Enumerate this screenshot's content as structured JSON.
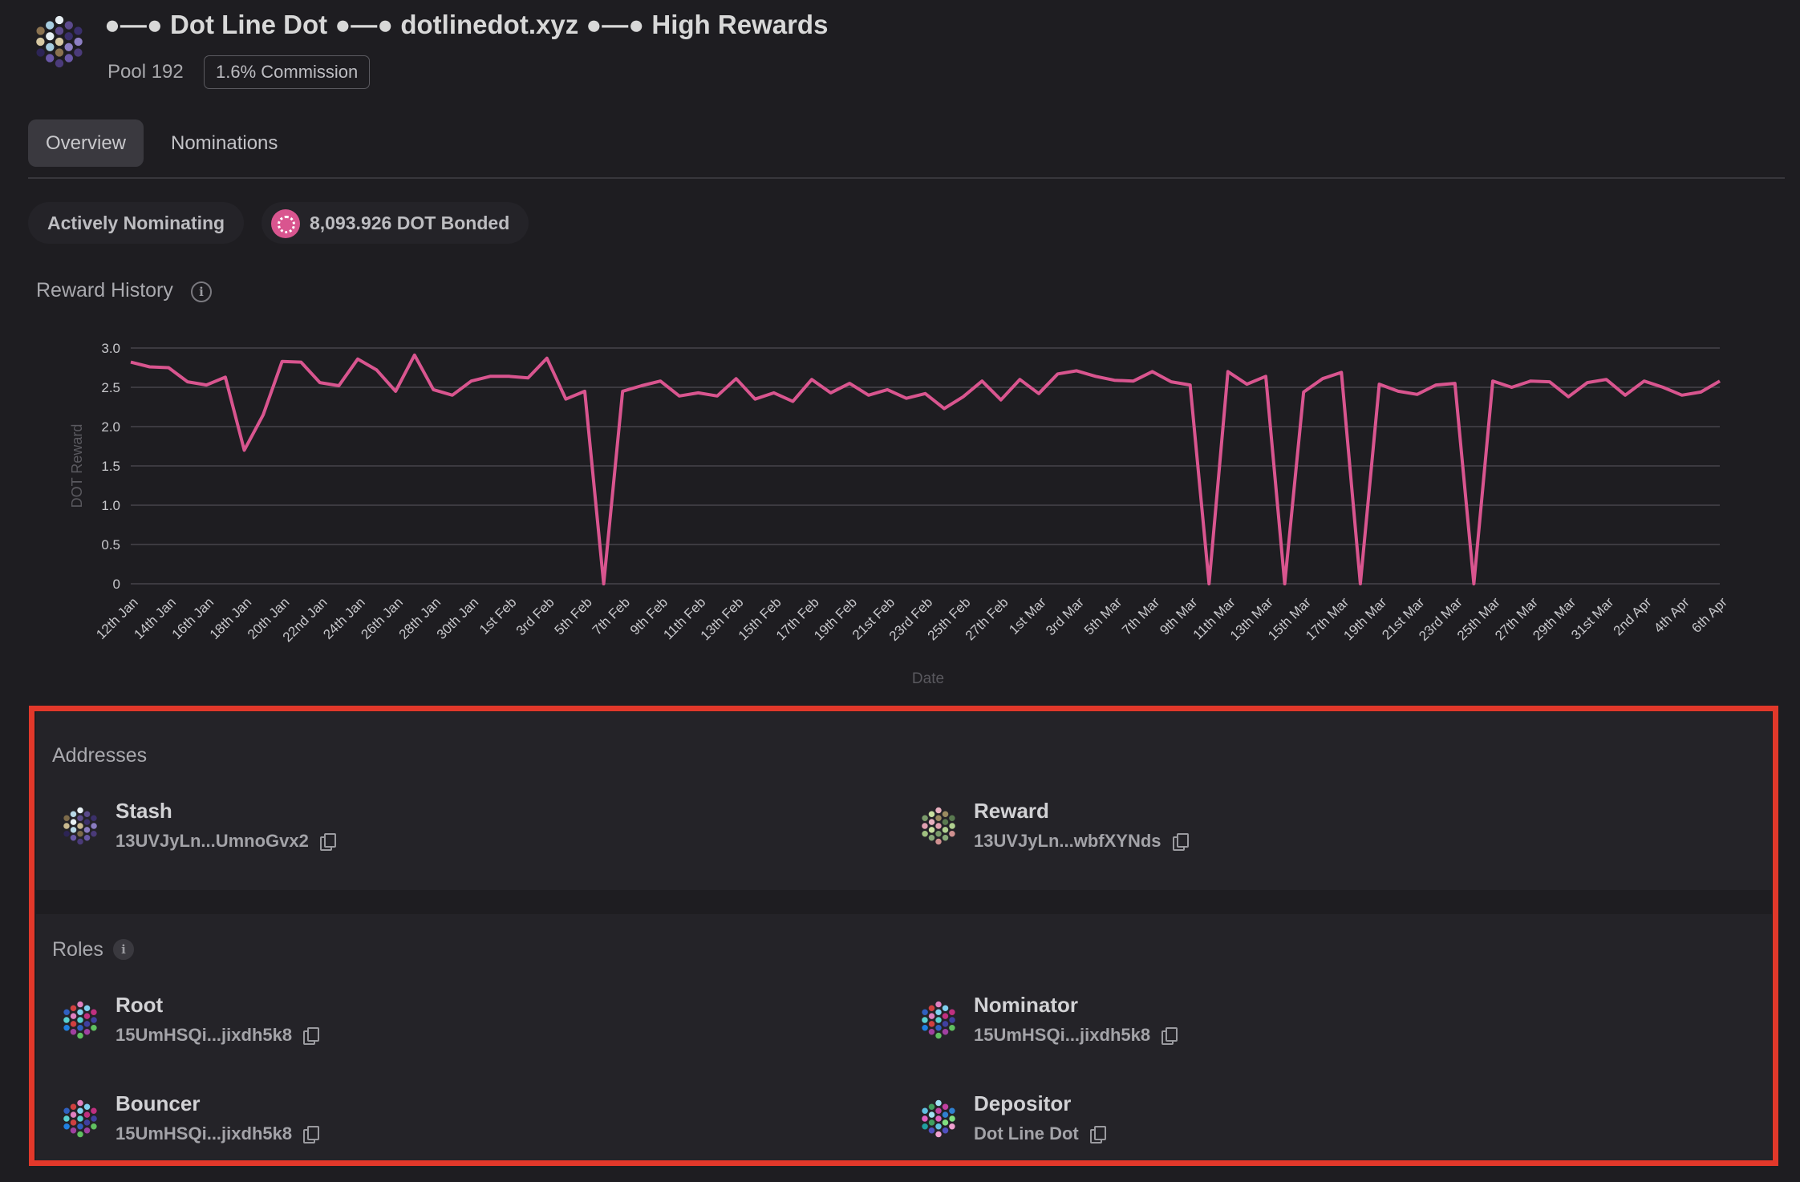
{
  "header": {
    "title": "●—● Dot Line Dot ●—● dotlinedot.xyz ●—● High Rewards",
    "pool_id": "Pool 192",
    "commission": "1.6% Commission"
  },
  "tabs": [
    {
      "label": "Overview",
      "active": true
    },
    {
      "label": "Nominations",
      "active": false
    }
  ],
  "status": {
    "nominating": "Actively Nominating",
    "bonded": "8,093.926 DOT Bonded"
  },
  "reward_history": {
    "label": "Reward History"
  },
  "chart_data": {
    "type": "line",
    "xlabel": "Date",
    "ylabel": "DOT Reward",
    "ylim": [
      0,
      3.0
    ],
    "yticks": [
      "0",
      "0.5",
      "1.0",
      "1.5",
      "2.0",
      "2.5",
      "3.0"
    ],
    "tick_labels": [
      "12th Jan",
      "14th Jan",
      "16th Jan",
      "18th Jan",
      "20th Jan",
      "22nd Jan",
      "24th Jan",
      "26th Jan",
      "28th Jan",
      "30th Jan",
      "1st Feb",
      "3rd Feb",
      "5th Feb",
      "7th Feb",
      "9th Feb",
      "11th Feb",
      "13th Feb",
      "15th Feb",
      "17th Feb",
      "19th Feb",
      "21st Feb",
      "23rd Feb",
      "25th Feb",
      "27th Feb",
      "1st Mar",
      "3rd Mar",
      "5th Mar",
      "7th Mar",
      "9th Mar",
      "11th Mar",
      "13th Mar",
      "15th Mar",
      "17th Mar",
      "19th Mar",
      "21st Mar",
      "23rd Mar",
      "25th Mar",
      "27th Mar",
      "29th Mar",
      "31st Mar",
      "2nd Apr",
      "4th Apr",
      "6th Apr"
    ],
    "grid": true,
    "color": "#d9558f",
    "series": [
      {
        "values": [
          2.82,
          2.76,
          2.75,
          2.57,
          2.53,
          2.63,
          1.7,
          2.15,
          2.83,
          2.82,
          2.56,
          2.52,
          2.86,
          2.72,
          2.45,
          2.91,
          2.47,
          2.4,
          2.58,
          2.64,
          2.64,
          2.62,
          2.87,
          2.35,
          2.45,
          0,
          2.45,
          2.52,
          2.58,
          2.39,
          2.43,
          2.39,
          2.61,
          2.35,
          2.43,
          2.32,
          2.6,
          2.43,
          2.55,
          2.4,
          2.47,
          2.36,
          2.42,
          2.23,
          2.38,
          2.58,
          2.34,
          2.6,
          2.42,
          2.67,
          2.71,
          2.64,
          2.59,
          2.58,
          2.7,
          2.57,
          2.53,
          0,
          2.7,
          2.54,
          2.64,
          0,
          2.44,
          2.61,
          2.69,
          0,
          2.54,
          2.45,
          2.41,
          2.53,
          2.55,
          0,
          2.58,
          2.5,
          2.58,
          2.57,
          2.38,
          2.56,
          2.6,
          2.4,
          2.58,
          2.5,
          2.4,
          2.44,
          2.58
        ]
      }
    ]
  },
  "addresses": {
    "label": "Addresses",
    "stash": {
      "title": "Stash",
      "address": "13UVJyLn...UmnoGvx2"
    },
    "reward": {
      "title": "Reward",
      "address": "13UVJyLn...wbfXYNds"
    }
  },
  "roles": {
    "label": "Roles",
    "root": {
      "title": "Root",
      "address": "15UmHSQi...jixdh5k8"
    },
    "nominator": {
      "title": "Nominator",
      "address": "15UmHSQi...jixdh5k8"
    },
    "bouncer": {
      "title": "Bouncer",
      "address": "15UmHSQi...jixdh5k8"
    },
    "depositor": {
      "title": "Depositor",
      "address": "Dot Line Dot"
    }
  },
  "icons": {
    "info": "info-icon",
    "copy": "copy-icon",
    "token": "polkadot-token-icon",
    "avatar": "identicon"
  },
  "colors": {
    "accent": "#d9558f",
    "highlight": "#e2382a",
    "background": "#1e1d21"
  }
}
